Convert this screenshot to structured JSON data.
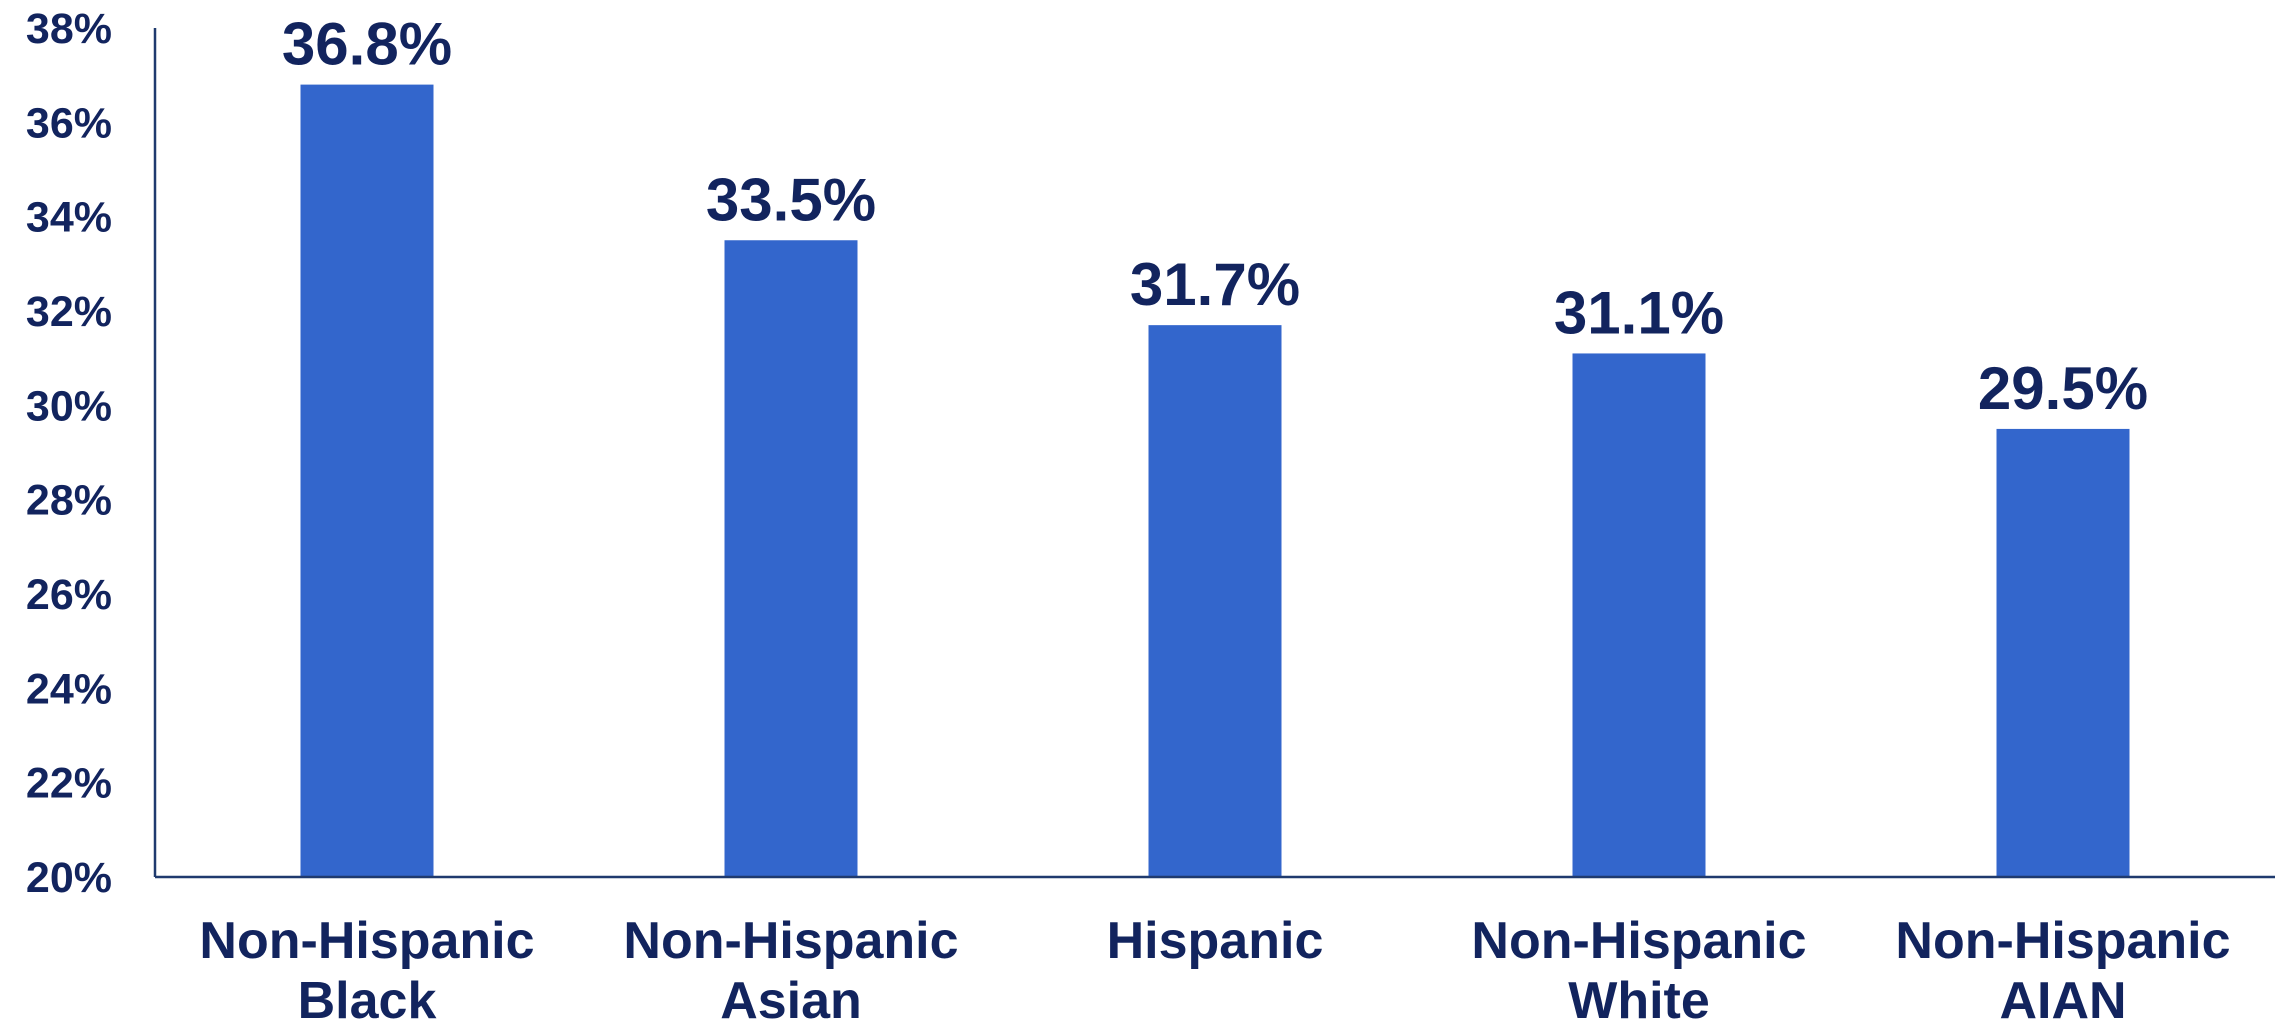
{
  "chart_data": {
    "type": "bar",
    "categories": [
      [
        "Non-Hispanic",
        "Black"
      ],
      [
        "Non-Hispanic",
        "Asian"
      ],
      [
        "Hispanic"
      ],
      [
        "Non-Hispanic",
        "White"
      ],
      [
        "Non-Hispanic",
        "AIAN"
      ]
    ],
    "values": [
      36.8,
      33.5,
      31.7,
      31.1,
      29.5
    ],
    "data_labels": [
      "36.8%",
      "33.5%",
      "31.7%",
      "31.1%",
      "29.5%"
    ],
    "ylim": [
      20,
      38
    ],
    "yticks": [
      20,
      22,
      24,
      26,
      28,
      30,
      32,
      34,
      36,
      38
    ],
    "ytick_labels": [
      "20%",
      "22%",
      "24%",
      "26%",
      "28%",
      "30%",
      "32%",
      "34%",
      "36%",
      "38%"
    ],
    "grid": false,
    "colors": {
      "bar": "#3366CC",
      "text": "#12245E",
      "axis": "#1F3A6E"
    }
  }
}
